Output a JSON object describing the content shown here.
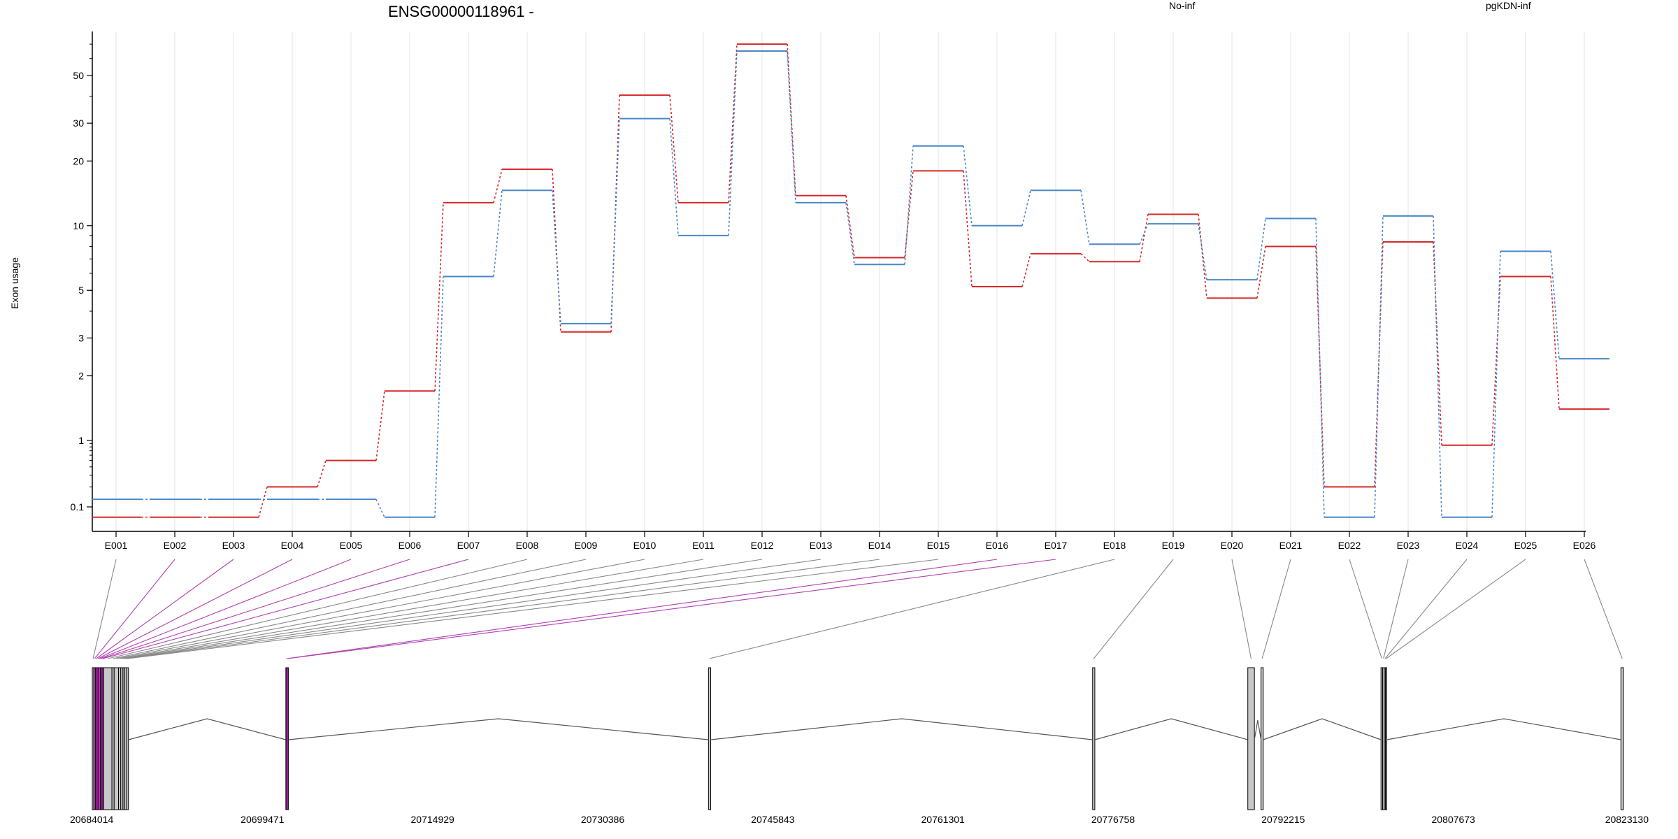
{
  "chart_data": {
    "type": "line",
    "title": "ENSG00000118961 -",
    "ylabel": "Exon usage",
    "xlabel": "",
    "y_scale": "log",
    "grid": "vertical",
    "legend_placement": "top",
    "categories": [
      "E001",
      "E002",
      "E003",
      "E004",
      "E005",
      "E006",
      "E007",
      "E008",
      "E009",
      "E010",
      "E011",
      "E012",
      "E013",
      "E014",
      "E015",
      "E016",
      "E017",
      "E018",
      "E019",
      "E020",
      "E021",
      "E022",
      "E023",
      "E024",
      "E025",
      "E026"
    ],
    "y_ticks": [
      0.1,
      1,
      2,
      3,
      5,
      10,
      20,
      30,
      50
    ],
    "y_tick_labels": [
      "0.1",
      "1",
      "2",
      "3",
      "5",
      "10",
      "20",
      "30",
      "50"
    ],
    "series": [
      {
        "name": "No-inf",
        "color": "#d62728",
        "values": [
          0.07,
          0.07,
          0.07,
          0.2,
          0.5,
          1.7,
          12.8,
          18.3,
          3.2,
          40.5,
          12.8,
          70.0,
          13.8,
          7.1,
          18.0,
          5.2,
          7.4,
          6.8,
          11.3,
          4.6,
          8.0,
          0.2,
          8.4,
          0.85,
          5.8,
          1.4
        ]
      },
      {
        "name": "pgKDN-inf",
        "color": "#4a86c8",
        "values": [
          0.13,
          0.13,
          0.13,
          0.13,
          0.13,
          0.07,
          5.8,
          14.6,
          3.5,
          31.5,
          9.0,
          65.0,
          12.8,
          6.6,
          23.5,
          10.0,
          14.6,
          8.2,
          10.2,
          5.6,
          10.8,
          0.07,
          11.1,
          0.07,
          7.6,
          2.4
        ]
      }
    ],
    "gene_model": {
      "coordinate_labels": [
        "20684014",
        "20699471",
        "20714929",
        "20730386",
        "20745843",
        "20761301",
        "20776758",
        "20792215",
        "20807673",
        "20823130"
      ],
      "region_start": 20684014,
      "region_end": 20823130,
      "colors": {
        "exon": "#c8c8c8",
        "highlight": "#cc33cc",
        "link": "#888888",
        "link_highlight": "#b040b0"
      },
      "exons": [
        {
          "id": "E001",
          "start": 20684014,
          "end": 20684150,
          "highlight": false
        },
        {
          "id": "E002",
          "start": 20684150,
          "end": 20684300,
          "highlight": true
        },
        {
          "id": "E003",
          "start": 20684300,
          "end": 20684450,
          "highlight": true
        },
        {
          "id": "E004",
          "start": 20684450,
          "end": 20684600,
          "highlight": true
        },
        {
          "id": "E005",
          "start": 20684600,
          "end": 20684750,
          "highlight": true
        },
        {
          "id": "E006",
          "start": 20684750,
          "end": 20684900,
          "highlight": true
        },
        {
          "id": "E007",
          "start": 20684900,
          "end": 20685050,
          "highlight": true
        },
        {
          "id": "E008",
          "start": 20685050,
          "end": 20685800,
          "highlight": false
        },
        {
          "id": "E009",
          "start": 20685800,
          "end": 20686000,
          "highlight": false
        },
        {
          "id": "E010",
          "start": 20686000,
          "end": 20686400,
          "highlight": false
        },
        {
          "id": "E011",
          "start": 20686400,
          "end": 20686600,
          "highlight": false
        },
        {
          "id": "E012",
          "start": 20686600,
          "end": 20686800,
          "highlight": false
        },
        {
          "id": "E013",
          "start": 20686800,
          "end": 20686950,
          "highlight": false
        },
        {
          "id": "E014",
          "start": 20686950,
          "end": 20687150,
          "highlight": false
        },
        {
          "id": "E015",
          "start": 20687150,
          "end": 20687300,
          "highlight": false
        },
        {
          "id": "E016",
          "start": 20701600,
          "end": 20701700,
          "highlight": true
        },
        {
          "id": "E017",
          "start": 20701700,
          "end": 20701800,
          "highlight": true
        },
        {
          "id": "E018",
          "start": 20740000,
          "end": 20740200,
          "highlight": false
        },
        {
          "id": "E019",
          "start": 20774900,
          "end": 20775100,
          "highlight": false
        },
        {
          "id": "E020",
          "start": 20789000,
          "end": 20789600,
          "highlight": false
        },
        {
          "id": "E021",
          "start": 20790200,
          "end": 20790400,
          "highlight": false
        },
        {
          "id": "E022",
          "start": 20801100,
          "end": 20801250,
          "highlight": false
        },
        {
          "id": "E023",
          "start": 20801250,
          "end": 20801400,
          "highlight": false
        },
        {
          "id": "E024",
          "start": 20801400,
          "end": 20801500,
          "highlight": false
        },
        {
          "id": "E025",
          "start": 20801500,
          "end": 20801600,
          "highlight": false
        },
        {
          "id": "E026",
          "start": 20822900,
          "end": 20823130,
          "highlight": false
        }
      ]
    }
  }
}
